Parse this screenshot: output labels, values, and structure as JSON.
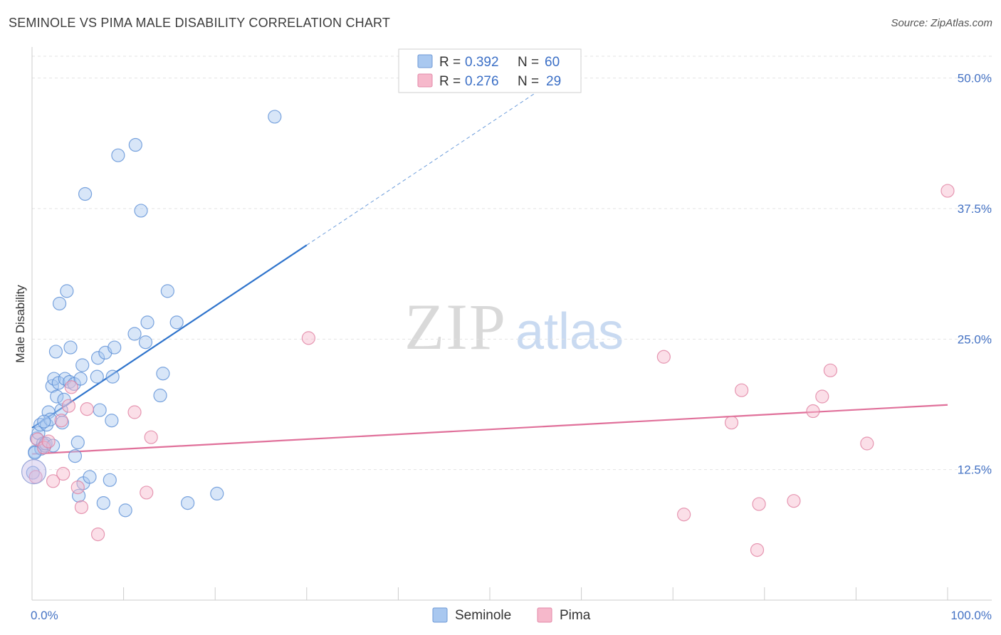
{
  "title": "SEMINOLE VS PIMA MALE DISABILITY CORRELATION CHART",
  "source": "Source: ZipAtlas.com",
  "chart_data": {
    "type": "scatter",
    "xlabel": "",
    "ylabel": "Male Disability",
    "xlim": [
      0,
      100
    ],
    "ylim": [
      0,
      52.5
    ],
    "x_tick_labels": [
      {
        "value": 0,
        "label": "0.0%"
      },
      {
        "value": 100,
        "label": "100.0%"
      }
    ],
    "y_tick_labels": [
      {
        "value": 12.5,
        "label": "12.5%"
      },
      {
        "value": 25,
        "label": "25.0%"
      },
      {
        "value": 37.5,
        "label": "37.5%"
      },
      {
        "value": 50,
        "label": "50.0%"
      }
    ],
    "legend": {
      "placement": "top-center",
      "entries": [
        {
          "r_label": "R =",
          "r": "0.392",
          "n_label": "N =",
          "n": "60",
          "color": "#a9c8f0"
        },
        {
          "r_label": "R =",
          "r": "0.276",
          "n_label": "N =",
          "n": "29",
          "color": "#f6b8cb"
        }
      ]
    },
    "series": [
      {
        "name": "Seminole",
        "color": "#a9c8f0",
        "stroke": "#5b8fd6",
        "trend_color": "#2f74cc",
        "trend": {
          "x0": 0,
          "y0": 16.5,
          "x1": 30,
          "y1": 34.0,
          "dash_to_x": 55
        },
        "points": [
          [
            0.3,
            14.2
          ],
          [
            0.5,
            15.5
          ],
          [
            0.7,
            16.0
          ],
          [
            0.9,
            16.8
          ],
          [
            1.0,
            14.5
          ],
          [
            1.2,
            15.0
          ],
          [
            1.4,
            14.8
          ],
          [
            1.6,
            16.8
          ],
          [
            1.8,
            18.0
          ],
          [
            2.0,
            17.3
          ],
          [
            2.2,
            20.5
          ],
          [
            2.4,
            21.2
          ],
          [
            2.6,
            23.8
          ],
          [
            2.7,
            19.5
          ],
          [
            2.9,
            20.8
          ],
          [
            3.0,
            28.4
          ],
          [
            3.2,
            18.2
          ],
          [
            3.3,
            17.0
          ],
          [
            3.5,
            19.2
          ],
          [
            3.6,
            21.2
          ],
          [
            3.8,
            29.6
          ],
          [
            4.1,
            20.9
          ],
          [
            4.2,
            24.2
          ],
          [
            4.6,
            20.7
          ],
          [
            4.7,
            13.8
          ],
          [
            5.0,
            15.1
          ],
          [
            5.1,
            10.0
          ],
          [
            5.3,
            21.2
          ],
          [
            5.5,
            22.5
          ],
          [
            5.6,
            11.2
          ],
          [
            5.8,
            38.9
          ],
          [
            6.3,
            11.8
          ],
          [
            7.1,
            21.4
          ],
          [
            7.2,
            23.2
          ],
          [
            7.4,
            18.2
          ],
          [
            7.8,
            9.3
          ],
          [
            8.0,
            23.7
          ],
          [
            8.5,
            11.5
          ],
          [
            8.7,
            17.2
          ],
          [
            8.8,
            21.4
          ],
          [
            9.0,
            24.2
          ],
          [
            9.4,
            42.6
          ],
          [
            10.2,
            8.6
          ],
          [
            11.2,
            25.5
          ],
          [
            11.3,
            43.6
          ],
          [
            11.9,
            37.3
          ],
          [
            12.4,
            24.7
          ],
          [
            12.6,
            26.6
          ],
          [
            14.0,
            19.6
          ],
          [
            14.3,
            21.7
          ],
          [
            14.8,
            29.6
          ],
          [
            15.8,
            26.6
          ],
          [
            17.0,
            9.3
          ],
          [
            20.2,
            10.2
          ],
          [
            26.5,
            46.3
          ],
          [
            0.1,
            12.2
          ],
          [
            0.3,
            14.1
          ],
          [
            1.3,
            17.1
          ],
          [
            1.5,
            15.0
          ],
          [
            2.3,
            14.8
          ]
        ]
      },
      {
        "name": "Pima",
        "color": "#f6b8cb",
        "stroke": "#e07fa0",
        "trend_color": "#e0709a",
        "trend": {
          "x0": 0,
          "y0": 14.0,
          "x1": 100,
          "y1": 18.7
        },
        "points": [
          [
            0.4,
            11.8
          ],
          [
            0.6,
            15.4
          ],
          [
            1.3,
            14.6
          ],
          [
            1.8,
            15.2
          ],
          [
            2.3,
            11.4
          ],
          [
            3.2,
            17.2
          ],
          [
            3.4,
            12.1
          ],
          [
            4.0,
            18.6
          ],
          [
            4.3,
            20.4
          ],
          [
            5.0,
            10.8
          ],
          [
            5.4,
            8.9
          ],
          [
            6.0,
            18.3
          ],
          [
            7.2,
            6.3
          ],
          [
            11.2,
            18.0
          ],
          [
            12.5,
            10.3
          ],
          [
            13.0,
            15.6
          ],
          [
            30.2,
            25.1
          ],
          [
            69.0,
            23.3
          ],
          [
            71.2,
            8.2
          ],
          [
            76.4,
            17.0
          ],
          [
            77.5,
            20.1
          ],
          [
            79.2,
            4.8
          ],
          [
            79.4,
            9.2
          ],
          [
            83.2,
            9.5
          ],
          [
            85.3,
            18.1
          ],
          [
            86.3,
            19.5
          ],
          [
            87.2,
            22.0
          ],
          [
            91.2,
            15.0
          ],
          [
            100.0,
            39.2
          ]
        ]
      }
    ]
  },
  "bottom_legend": [
    {
      "label": "Seminole",
      "color": "#a9c8f0"
    },
    {
      "label": "Pima",
      "color": "#f6b8cb"
    }
  ],
  "watermark": {
    "zip": "ZIP",
    "atlas": "atlas"
  }
}
